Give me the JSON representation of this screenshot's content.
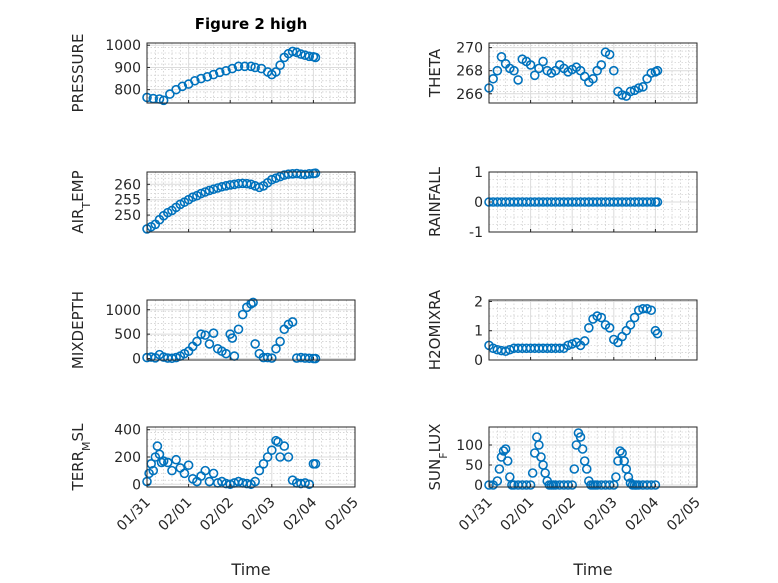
{
  "figure": {
    "title": "Figure 2 high",
    "accent": "#0072BD"
  },
  "chart_data": [
    {
      "type": "scatter",
      "name": "PRESSURE",
      "ylabel": "PRESSURE",
      "xlabel": "",
      "xlim": [
        0,
        5
      ],
      "ylim": [
        740,
        1010
      ],
      "yticks": [
        800,
        900,
        1000
      ],
      "ytick_labels": [
        "800",
        "900",
        "1000"
      ],
      "xticks": [
        0,
        1,
        2,
        3,
        4,
        5
      ],
      "xtick_labels": [
        "01/31",
        "02/01",
        "02/02",
        "02/03",
        "02/04",
        "02/05"
      ],
      "show_xticklabels": false,
      "x": [
        0.0,
        0.15,
        0.3,
        0.4,
        0.55,
        0.7,
        0.85,
        1.0,
        1.15,
        1.3,
        1.45,
        1.6,
        1.75,
        1.9,
        2.05,
        2.2,
        2.35,
        2.5,
        2.6,
        2.75,
        2.9,
        3.0,
        3.1,
        3.2,
        3.3,
        3.4,
        3.5,
        3.6,
        3.7,
        3.8,
        3.9,
        4.0,
        4.05
      ],
      "y": [
        765,
        760,
        758,
        752,
        780,
        800,
        815,
        825,
        840,
        850,
        858,
        868,
        878,
        885,
        895,
        905,
        905,
        905,
        900,
        895,
        880,
        868,
        880,
        910,
        945,
        962,
        972,
        968,
        960,
        955,
        950,
        948,
        945
      ]
    },
    {
      "type": "scatter",
      "name": "THETA",
      "ylabel": "THETA",
      "xlabel": "",
      "xlim": [
        0,
        5
      ],
      "ylim": [
        265.2,
        270.4
      ],
      "yticks": [
        266,
        268,
        270
      ],
      "ytick_labels": [
        "266",
        "268",
        "270"
      ],
      "xticks": [
        0,
        1,
        2,
        3,
        4,
        5
      ],
      "xtick_labels": [
        "01/31",
        "02/01",
        "02/02",
        "02/03",
        "02/04",
        "02/05"
      ],
      "show_xticklabels": false,
      "x": [
        0.0,
        0.1,
        0.2,
        0.3,
        0.4,
        0.5,
        0.6,
        0.7,
        0.8,
        0.9,
        1.0,
        1.1,
        1.2,
        1.3,
        1.4,
        1.5,
        1.6,
        1.7,
        1.8,
        1.9,
        2.0,
        2.1,
        2.2,
        2.3,
        2.4,
        2.5,
        2.6,
        2.7,
        2.8,
        2.9,
        3.0,
        3.1,
        3.2,
        3.3,
        3.4,
        3.5,
        3.6,
        3.7,
        3.8,
        3.9,
        4.0,
        4.05
      ],
      "y": [
        266.5,
        267.3,
        268.0,
        269.2,
        268.6,
        268.2,
        268.0,
        267.2,
        269.0,
        268.8,
        268.5,
        267.6,
        268.2,
        268.8,
        268.0,
        267.8,
        268.0,
        268.5,
        268.2,
        267.9,
        268.1,
        268.3,
        268.0,
        267.5,
        267.0,
        267.3,
        268.0,
        268.5,
        269.6,
        269.4,
        268.0,
        266.2,
        265.9,
        265.8,
        266.2,
        266.3,
        266.5,
        266.6,
        267.3,
        267.8,
        267.9,
        268.0
      ]
    },
    {
      "type": "scatter",
      "name": "AIR_TEMP",
      "ylabel": "AIR_TEMP",
      "xlabel": "",
      "xlim": [
        0,
        5
      ],
      "ylim": [
        244.5,
        264
      ],
      "yticks": [
        250,
        255,
        260
      ],
      "ytick_labels": [
        "250",
        "255",
        "260"
      ],
      "xticks": [
        0,
        1,
        2,
        3,
        4,
        5
      ],
      "xtick_labels": [
        "01/31",
        "02/01",
        "02/02",
        "02/03",
        "02/04",
        "02/05"
      ],
      "show_xticklabels": false,
      "x": [
        0.0,
        0.1,
        0.2,
        0.3,
        0.4,
        0.5,
        0.6,
        0.7,
        0.8,
        0.9,
        1.0,
        1.1,
        1.2,
        1.3,
        1.4,
        1.5,
        1.6,
        1.7,
        1.8,
        1.9,
        2.0,
        2.1,
        2.2,
        2.3,
        2.4,
        2.5,
        2.6,
        2.7,
        2.8,
        2.9,
        3.0,
        3.1,
        3.2,
        3.3,
        3.4,
        3.5,
        3.6,
        3.7,
        3.8,
        3.9,
        4.0,
        4.05
      ],
      "y": [
        245.5,
        246.2,
        247.0,
        248.5,
        249.8,
        250.8,
        251.5,
        252.5,
        253.5,
        254.2,
        255.0,
        255.8,
        256.3,
        257.0,
        257.5,
        258.0,
        258.4,
        258.8,
        259.2,
        259.5,
        259.8,
        260.0,
        260.2,
        260.3,
        260.2,
        260.0,
        259.5,
        259.0,
        259.5,
        260.5,
        261.5,
        262.0,
        262.5,
        263.0,
        263.3,
        263.4,
        263.5,
        263.3,
        263.2,
        263.4,
        263.5,
        263.6
      ]
    },
    {
      "type": "scatter",
      "name": "RAINFALL",
      "ylabel": "RAINFALL",
      "xlabel": "",
      "xlim": [
        0,
        5
      ],
      "ylim": [
        -1,
        1
      ],
      "yticks": [
        -1,
        0,
        1
      ],
      "ytick_labels": [
        "-1",
        "0",
        "1"
      ],
      "xticks": [
        0,
        1,
        2,
        3,
        4,
        5
      ],
      "xtick_labels": [
        "01/31",
        "02/01",
        "02/02",
        "02/03",
        "02/04",
        "02/05"
      ],
      "show_xticklabels": false,
      "x": [
        0.0,
        0.1,
        0.2,
        0.3,
        0.4,
        0.5,
        0.6,
        0.7,
        0.8,
        0.9,
        1.0,
        1.1,
        1.2,
        1.3,
        1.4,
        1.5,
        1.6,
        1.7,
        1.8,
        1.9,
        2.0,
        2.1,
        2.2,
        2.3,
        2.4,
        2.5,
        2.6,
        2.7,
        2.8,
        2.9,
        3.0,
        3.1,
        3.2,
        3.3,
        3.4,
        3.5,
        3.6,
        3.7,
        3.8,
        3.9,
        4.0,
        4.05
      ],
      "y": [
        0,
        0,
        0,
        0,
        0,
        0,
        0,
        0,
        0,
        0,
        0,
        0,
        0,
        0,
        0,
        0,
        0,
        0,
        0,
        0,
        0,
        0,
        0,
        0,
        0,
        0,
        0,
        0,
        0,
        0,
        0,
        0,
        0,
        0,
        0,
        0,
        0,
        0,
        0,
        0,
        0,
        0
      ]
    },
    {
      "type": "scatter",
      "name": "MIXDEPTH",
      "ylabel": "MIXDEPTH",
      "xlabel": "",
      "xlim": [
        0,
        5
      ],
      "ylim": [
        -30,
        1200
      ],
      "yticks": [
        0,
        500,
        1000
      ],
      "ytick_labels": [
        "0",
        "500",
        "1000"
      ],
      "xticks": [
        0,
        1,
        2,
        3,
        4,
        5
      ],
      "xtick_labels": [
        "01/31",
        "02/01",
        "02/02",
        "02/03",
        "02/04",
        "02/05"
      ],
      "show_xticklabels": false,
      "x": [
        0.0,
        0.1,
        0.2,
        0.3,
        0.4,
        0.5,
        0.6,
        0.7,
        0.8,
        0.9,
        1.0,
        1.1,
        1.2,
        1.3,
        1.4,
        1.5,
        1.6,
        1.7,
        1.8,
        1.9,
        2.0,
        2.05,
        2.1,
        2.2,
        2.3,
        2.4,
        2.5,
        2.55,
        2.6,
        2.7,
        2.8,
        2.9,
        3.0,
        3.1,
        3.2,
        3.3,
        3.4,
        3.5,
        3.6,
        3.7,
        3.8,
        3.9,
        4.0,
        4.05
      ],
      "y": [
        20,
        30,
        15,
        80,
        30,
        10,
        5,
        20,
        50,
        100,
        150,
        250,
        350,
        500,
        480,
        300,
        520,
        200,
        150,
        100,
        500,
        420,
        50,
        600,
        900,
        1050,
        1120,
        1150,
        300,
        100,
        20,
        20,
        10,
        200,
        350,
        600,
        700,
        750,
        10,
        20,
        10,
        5,
        0,
        0
      ]
    },
    {
      "type": "scatter",
      "name": "H2OMIXRA",
      "ylabel": "H2OMIXRA",
      "xlabel": "",
      "xlim": [
        0,
        5
      ],
      "ylim": [
        0,
        2.05
      ],
      "yticks": [
        0,
        1,
        2
      ],
      "ytick_labels": [
        "0",
        "1",
        "2"
      ],
      "xticks": [
        0,
        1,
        2,
        3,
        4,
        5
      ],
      "xtick_labels": [
        "01/31",
        "02/01",
        "02/02",
        "02/03",
        "02/04",
        "02/05"
      ],
      "show_xticklabels": false,
      "x": [
        0.0,
        0.1,
        0.2,
        0.3,
        0.4,
        0.5,
        0.6,
        0.7,
        0.8,
        0.9,
        1.0,
        1.1,
        1.2,
        1.3,
        1.4,
        1.5,
        1.6,
        1.7,
        1.8,
        1.9,
        2.0,
        2.1,
        2.2,
        2.3,
        2.4,
        2.5,
        2.6,
        2.7,
        2.8,
        2.9,
        3.0,
        3.1,
        3.2,
        3.3,
        3.4,
        3.5,
        3.6,
        3.7,
        3.8,
        3.9,
        4.0,
        4.05
      ],
      "y": [
        0.5,
        0.4,
        0.35,
        0.32,
        0.3,
        0.35,
        0.4,
        0.4,
        0.4,
        0.4,
        0.4,
        0.4,
        0.4,
        0.4,
        0.4,
        0.4,
        0.4,
        0.4,
        0.4,
        0.5,
        0.55,
        0.6,
        0.5,
        0.65,
        1.1,
        1.4,
        1.5,
        1.45,
        1.2,
        1.1,
        0.7,
        0.6,
        0.8,
        1.0,
        1.2,
        1.45,
        1.7,
        1.75,
        1.75,
        1.7,
        1.0,
        0.9
      ]
    },
    {
      "type": "scatter",
      "name": "TERR_MSL",
      "ylabel": "TERR_MSL",
      "xlabel": "Time",
      "xlim": [
        0,
        5
      ],
      "ylim": [
        -20,
        420
      ],
      "yticks": [
        0,
        200,
        400
      ],
      "ytick_labels": [
        "0",
        "200",
        "400"
      ],
      "xticks": [
        0,
        1,
        2,
        3,
        4,
        5
      ],
      "xtick_labels": [
        "01/31",
        "02/01",
        "02/02",
        "02/03",
        "02/04",
        "02/05"
      ],
      "show_xticklabels": true,
      "x": [
        0.0,
        0.05,
        0.1,
        0.15,
        0.2,
        0.25,
        0.3,
        0.35,
        0.4,
        0.5,
        0.6,
        0.7,
        0.8,
        0.9,
        1.0,
        1.1,
        1.2,
        1.3,
        1.4,
        1.5,
        1.6,
        1.7,
        1.8,
        1.9,
        2.0,
        2.1,
        2.2,
        2.3,
        2.4,
        2.5,
        2.6,
        2.7,
        2.8,
        2.9,
        3.0,
        3.1,
        3.15,
        3.2,
        3.3,
        3.4,
        3.5,
        3.6,
        3.7,
        3.8,
        3.9,
        4.0,
        4.05
      ],
      "y": [
        20,
        80,
        150,
        100,
        200,
        280,
        220,
        160,
        170,
        160,
        100,
        180,
        120,
        80,
        140,
        40,
        20,
        60,
        100,
        20,
        80,
        10,
        20,
        5,
        0,
        10,
        20,
        10,
        5,
        0,
        20,
        100,
        150,
        200,
        250,
        320,
        310,
        200,
        280,
        200,
        30,
        10,
        5,
        10,
        0,
        150,
        150
      ]
    },
    {
      "type": "scatter",
      "name": "SUN_FLUX",
      "ylabel": "SUN_FLUX",
      "xlabel": "Time",
      "xlim": [
        0,
        5
      ],
      "ylim": [
        -5,
        145
      ],
      "yticks": [
        0,
        50,
        100
      ],
      "ytick_labels": [
        "0",
        "50",
        "100"
      ],
      "xticks": [
        0,
        1,
        2,
        3,
        4,
        5
      ],
      "xtick_labels": [
        "01/31",
        "02/01",
        "02/02",
        "02/03",
        "02/04",
        "02/05"
      ],
      "show_xticklabels": true,
      "x": [
        0.0,
        0.1,
        0.2,
        0.25,
        0.3,
        0.35,
        0.4,
        0.45,
        0.5,
        0.55,
        0.6,
        0.7,
        0.8,
        0.9,
        1.0,
        1.05,
        1.1,
        1.15,
        1.2,
        1.25,
        1.3,
        1.35,
        1.4,
        1.45,
        1.5,
        1.55,
        1.6,
        1.7,
        1.8,
        1.9,
        2.0,
        2.05,
        2.1,
        2.15,
        2.2,
        2.25,
        2.3,
        2.35,
        2.4,
        2.45,
        2.5,
        2.55,
        2.6,
        2.7,
        2.8,
        2.9,
        3.0,
        3.05,
        3.1,
        3.15,
        3.2,
        3.25,
        3.3,
        3.35,
        3.4,
        3.45,
        3.5,
        3.55,
        3.6,
        3.7,
        3.8,
        3.9,
        4.0
      ],
      "y": [
        0,
        0,
        10,
        40,
        70,
        85,
        90,
        60,
        20,
        0,
        0,
        0,
        0,
        0,
        0,
        30,
        80,
        120,
        100,
        70,
        50,
        30,
        10,
        0,
        0,
        0,
        0,
        0,
        0,
        0,
        0,
        40,
        100,
        130,
        120,
        90,
        60,
        40,
        10,
        0,
        0,
        0,
        0,
        0,
        0,
        0,
        0,
        20,
        60,
        85,
        80,
        60,
        40,
        20,
        5,
        0,
        0,
        0,
        0,
        0,
        0,
        0,
        0
      ]
    }
  ]
}
